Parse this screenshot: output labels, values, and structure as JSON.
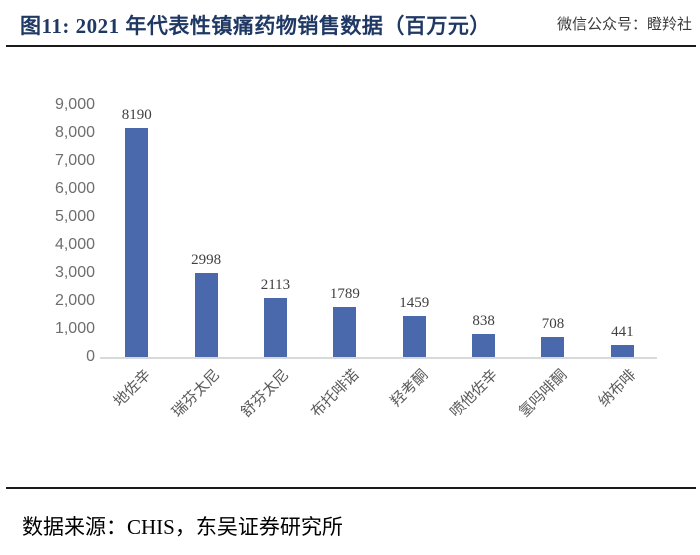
{
  "figure": {
    "title": "图11:  2021 年代表性镇痛药物销售数据（百万元）",
    "watermark": "微信公众号：瞪羚社",
    "source": "数据来源：CHIS，东吴证券研究所"
  },
  "chart_data": {
    "type": "bar",
    "title": "2021 年代表性镇痛药物销售数据（百万元）",
    "categories": [
      "地佐辛",
      "瑞芬太尼",
      "舒芬太尼",
      "布托啡诺",
      "羟考酮",
      "喷他佐辛",
      "氢吗啡酮",
      "纳布啡"
    ],
    "values": [
      8190,
      2998,
      2113,
      1789,
      1459,
      838,
      708,
      441
    ],
    "xlabel": "",
    "ylabel": "",
    "ylim": [
      0,
      9000
    ],
    "ytick_step": 1000,
    "ytick_labels": [
      "0",
      "1,000",
      "2,000",
      "3,000",
      "4,000",
      "5,000",
      "6,000",
      "7,000",
      "8,000",
      "9,000"
    ],
    "grid": false,
    "legend_position": "none",
    "data_labels": true,
    "bar_color": "#4a69ad",
    "value_label_color": "#3f3f3f",
    "axis_text_color": "#6e6e6e",
    "category_text_color": "#595959",
    "baseline_color": "#d9d9d9"
  },
  "colors": {
    "title_text": "#1f3864",
    "rule": "#1a1a1a",
    "background": "#ffffff"
  }
}
